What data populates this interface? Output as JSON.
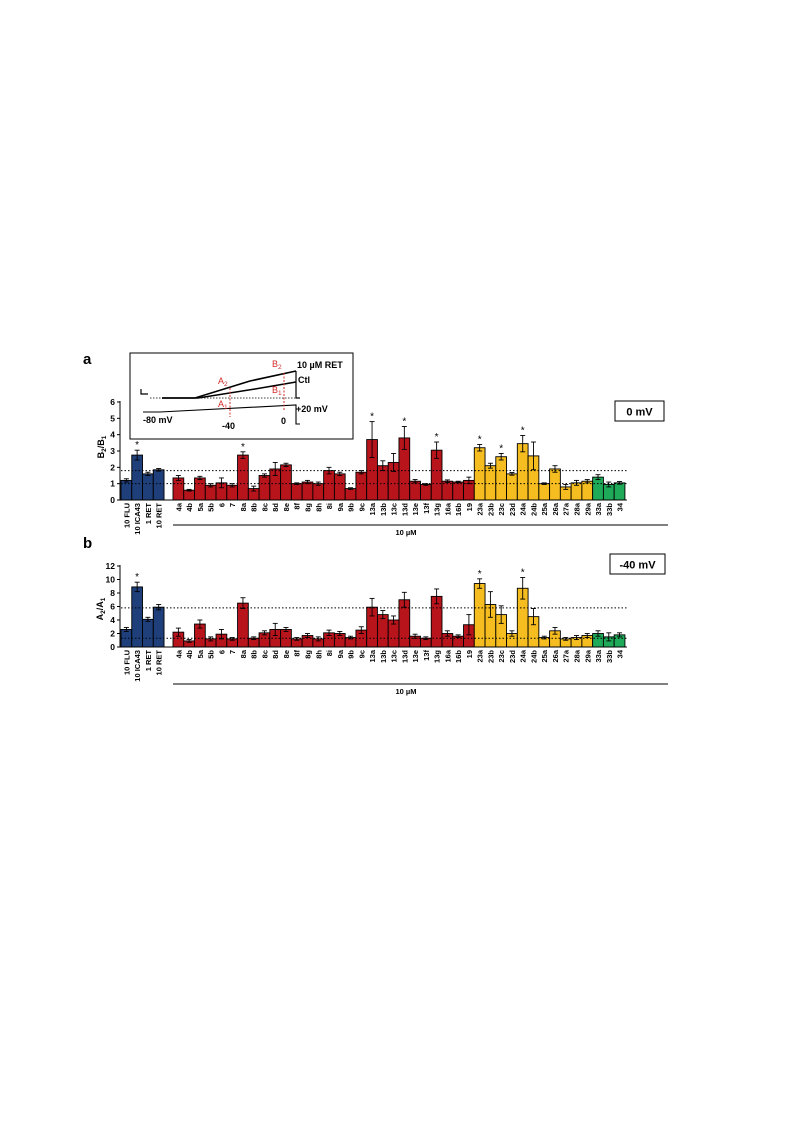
{
  "panels": [
    {
      "letter": "a",
      "ylabel": {
        "main": "B",
        "s1": "2",
        "mid": "/B",
        "s2": "1"
      },
      "condition": "0 mV",
      "x_group_label": "10 µM"
    },
    {
      "letter": "b",
      "ylabel": {
        "main": "A",
        "s1": "2",
        "mid": "/A",
        "s2": "1"
      },
      "condition": "-40 mV",
      "x_group_label": "10 µM"
    }
  ],
  "inset": {
    "trace_labels": [
      "10 µM RET",
      "Ctl"
    ],
    "voltages": [
      "-80 mV",
      "-40",
      "0",
      "+20 mV"
    ],
    "markers": [
      {
        "main": "A",
        "sub": "2"
      },
      {
        "main": "A",
        "sub": "1"
      },
      {
        "main": "B",
        "sub": "2"
      },
      {
        "main": "B",
        "sub": "1"
      }
    ]
  },
  "colors": {
    "reference": "#1f3f7a",
    "group_red": "#b8141c",
    "group_yellow": "#f5bd1f",
    "group_green": "#1faa59",
    "inset_marker": "#d42b2b"
  },
  "chart_data": [
    {
      "type": "bar",
      "title": "0 mV",
      "ylabel": "B2/B1",
      "ylim": [
        0,
        6
      ],
      "yticks": [
        0,
        1,
        2,
        3,
        4,
        5,
        6
      ],
      "reference_lines": [
        1.0,
        1.8
      ],
      "categories": [
        "10 FLU",
        "10 ICA43",
        "1 RET",
        "10 RET",
        "4a",
        "4b",
        "5a",
        "5b",
        "6",
        "7",
        "8a",
        "8b",
        "8c",
        "8d",
        "8e",
        "8f",
        "8g",
        "8h",
        "8i",
        "9a",
        "9b",
        "9c",
        "13a",
        "13b",
        "13c",
        "13d",
        "13e",
        "13f",
        "13g",
        "16a",
        "16b",
        "19",
        "23a",
        "23b",
        "23c",
        "23d",
        "24a",
        "24b",
        "25a",
        "26a",
        "27a",
        "28a",
        "29a",
        "33a",
        "33b",
        "34"
      ],
      "values": [
        1.2,
        2.75,
        1.6,
        1.85,
        1.35,
        0.6,
        1.35,
        0.9,
        1.05,
        0.9,
        2.75,
        0.7,
        1.5,
        1.9,
        2.15,
        1.0,
        1.1,
        1.0,
        1.8,
        1.6,
        0.7,
        1.7,
        3.7,
        2.1,
        2.3,
        3.8,
        1.15,
        0.95,
        3.05,
        1.15,
        1.1,
        1.2,
        3.2,
        2.1,
        2.65,
        1.6,
        3.45,
        2.7,
        1.0,
        1.9,
        0.8,
        1.05,
        1.15,
        1.4,
        0.95,
        1.05
      ],
      "errors": [
        0.1,
        0.3,
        0.1,
        0.08,
        0.15,
        0.05,
        0.1,
        0.1,
        0.3,
        0.1,
        0.2,
        0.15,
        0.1,
        0.4,
        0.1,
        0.05,
        0.1,
        0.1,
        0.2,
        0.1,
        0.05,
        0.1,
        1.1,
        0.3,
        0.55,
        0.7,
        0.1,
        0.05,
        0.5,
        0.08,
        0.05,
        0.2,
        0.2,
        0.15,
        0.2,
        0.08,
        0.5,
        0.85,
        0.05,
        0.2,
        0.15,
        0.15,
        0.1,
        0.15,
        0.15,
        0.08
      ],
      "significant": [
        "10 ICA43",
        "8a",
        "13a",
        "13d",
        "13g",
        "23a",
        "23c",
        "24a"
      ],
      "groups": [
        {
          "color_key": "reference",
          "from": "10 FLU",
          "to": "10 RET"
        },
        {
          "color_key": "group_red",
          "from": "4a",
          "to": "19"
        },
        {
          "color_key": "group_yellow",
          "from": "23a",
          "to": "29a"
        },
        {
          "color_key": "group_green",
          "from": "33a",
          "to": "34"
        }
      ]
    },
    {
      "type": "bar",
      "title": "-40 mV",
      "ylabel": "A2/A1",
      "ylim": [
        0,
        12
      ],
      "yticks": [
        0,
        2,
        4,
        6,
        8,
        10,
        12
      ],
      "reference_lines": [
        1.3,
        5.8
      ],
      "categories": [
        "10 FLU",
        "10 ICA43",
        "1 RET",
        "10 RET",
        "4a",
        "4b",
        "5a",
        "5b",
        "6",
        "7",
        "8a",
        "8b",
        "8c",
        "8d",
        "8e",
        "8f",
        "8g",
        "8h",
        "8i",
        "9a",
        "9b",
        "9c",
        "13a",
        "13b",
        "13c",
        "13d",
        "13e",
        "13f",
        "13g",
        "16a",
        "16b",
        "19",
        "23a",
        "23b",
        "23c",
        "23d",
        "24a",
        "24b",
        "25a",
        "26a",
        "27a",
        "28a",
        "29a",
        "33a",
        "33b",
        "34"
      ],
      "values": [
        2.6,
        8.9,
        4.1,
        5.9,
        2.2,
        0.9,
        3.4,
        1.2,
        1.9,
        1.2,
        6.5,
        1.3,
        2.1,
        2.6,
        2.6,
        1.2,
        1.7,
        1.2,
        2.1,
        2.0,
        1.4,
        2.5,
        5.9,
        4.8,
        4.0,
        7.0,
        1.6,
        1.3,
        7.5,
        2.0,
        1.6,
        3.3,
        9.4,
        6.3,
        4.8,
        2.0,
        8.7,
        4.5,
        1.4,
        2.4,
        1.2,
        1.4,
        1.7,
        2.0,
        1.5,
        1.8
      ],
      "errors": [
        0.3,
        0.7,
        0.3,
        0.4,
        0.6,
        0.2,
        0.6,
        0.3,
        0.7,
        0.2,
        0.8,
        0.2,
        0.3,
        0.9,
        0.3,
        0.2,
        0.3,
        0.3,
        0.4,
        0.3,
        0.2,
        0.5,
        1.3,
        0.6,
        0.6,
        1.1,
        0.3,
        0.2,
        1.1,
        0.4,
        0.2,
        1.5,
        0.7,
        1.9,
        1.3,
        0.4,
        1.6,
        1.2,
        0.2,
        0.5,
        0.2,
        0.3,
        0.3,
        0.4,
        0.6,
        0.3
      ],
      "significant": [
        "10 ICA43",
        "23a",
        "24a"
      ],
      "groups": [
        {
          "color_key": "reference",
          "from": "10 FLU",
          "to": "10 RET"
        },
        {
          "color_key": "group_red",
          "from": "4a",
          "to": "19"
        },
        {
          "color_key": "group_yellow",
          "from": "23a",
          "to": "29a"
        },
        {
          "color_key": "group_green",
          "from": "33a",
          "to": "34"
        }
      ]
    }
  ]
}
